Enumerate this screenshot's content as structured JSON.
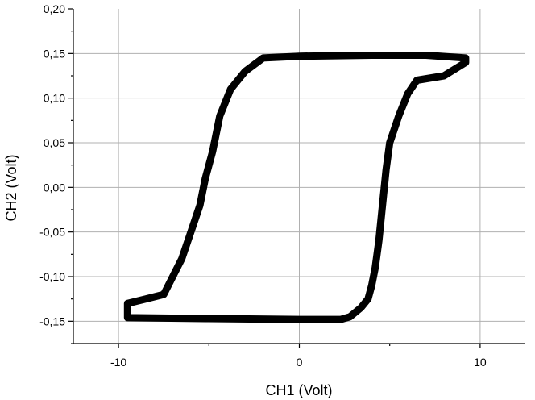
{
  "chart_data": {
    "type": "line",
    "title": "",
    "xlabel": "CH1 (Volt)",
    "ylabel": "CH2 (Volt)",
    "xlim": [
      -12.5,
      12.5
    ],
    "ylim": [
      -0.175,
      0.2
    ],
    "grid": true,
    "xticks": [
      {
        "value": -10,
        "label": "-10"
      },
      {
        "value": 0,
        "label": "0"
      },
      {
        "value": 10,
        "label": "10"
      }
    ],
    "yticks": [
      {
        "value": 0.2,
        "label": "0,20"
      },
      {
        "value": 0.15,
        "label": "0,15"
      },
      {
        "value": 0.1,
        "label": "0,10"
      },
      {
        "value": 0.05,
        "label": "0,05"
      },
      {
        "value": 0.0,
        "label": "0,00"
      },
      {
        "value": -0.05,
        "label": "-0,05"
      },
      {
        "value": -0.1,
        "label": "-0,10"
      },
      {
        "value": -0.15,
        "label": "-0,15"
      }
    ],
    "series": [
      {
        "x": [
          9.2,
          8.0,
          6.5,
          6.0,
          5.5,
          5.0,
          4.8,
          4.6,
          4.4,
          4.2,
          4.0,
          3.8,
          3.4,
          2.8,
          2.3,
          0.0,
          -5.0,
          -9.5,
          -9.5,
          -8.5,
          -7.5,
          -7.0,
          -6.5,
          -6.0,
          -5.5,
          -5.2,
          -4.8,
          -4.4,
          -3.8,
          -3.0,
          -2.0,
          0.0,
          4.0,
          7.0,
          9.2
        ],
        "y": [
          0.14,
          0.125,
          0.12,
          0.105,
          0.08,
          0.05,
          0.02,
          -0.02,
          -0.06,
          -0.09,
          -0.11,
          -0.125,
          -0.135,
          -0.145,
          -0.148,
          -0.148,
          -0.147,
          -0.146,
          -0.13,
          -0.125,
          -0.12,
          -0.1,
          -0.08,
          -0.05,
          -0.02,
          0.01,
          0.04,
          0.08,
          0.11,
          0.13,
          0.145,
          0.147,
          0.148,
          0.148,
          0.145
        ]
      }
    ]
  }
}
